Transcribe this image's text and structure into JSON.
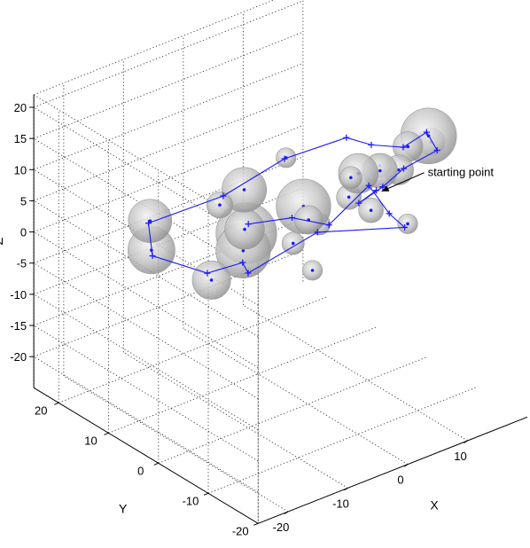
{
  "chart_data": {
    "type": "scatter",
    "subtype": "3d-path-with-spheres",
    "title": "",
    "xlabel": "X",
    "ylabel": "Y",
    "zlabel": "Z",
    "xlim": [
      -25,
      20
    ],
    "ylim": [
      -20,
      25
    ],
    "zlim": [
      -25,
      22
    ],
    "x_ticks": [
      "-20",
      "-10",
      "0",
      "10"
    ],
    "y_ticks": [
      "20",
      "10",
      "0",
      "-10",
      "-20"
    ],
    "z_ticks": [
      "20",
      "15",
      "10",
      "5",
      "0",
      "-5",
      "-10",
      "-15",
      "-20"
    ],
    "grid": true,
    "legend": "none",
    "series": [
      {
        "style": "line-with-plus-markers",
        "color": "#1a1aff",
        "points": [
          {
            "x": 0.2,
            "y": 12.2,
            "z": -2.1
          },
          {
            "x": 4.0,
            "y": 8.0,
            "z": -0.5
          },
          {
            "x": 6.0,
            "y": 3.0,
            "z": 0.0
          },
          {
            "x": 16.0,
            "y": 7.0,
            "z": 0.6
          },
          {
            "x": 11.5,
            "y": -2.5,
            "z": 2.4
          },
          {
            "x": 7.0,
            "y": -11.0,
            "z": 6.0
          },
          {
            "x": -4.5,
            "y": -7.3,
            "z": 7.8
          },
          {
            "x": -10.0,
            "y": 0.0,
            "z": -0.2
          },
          {
            "x": -6.5,
            "y": 5.3,
            "z": -2.4
          },
          {
            "x": -10.5,
            "y": 7.6,
            "z": -3.7
          },
          {
            "x": -14.5,
            "y": 13.8,
            "z": -2.4
          },
          {
            "x": -11.0,
            "y": 18.8,
            "z": -0.9
          },
          {
            "x": -1.5,
            "y": 15.2,
            "z": 1.6
          },
          {
            "x": 3.0,
            "y": 8.3,
            "z": 9.2
          },
          {
            "x": 8.5,
            "y": 2.5,
            "z": 13.3
          },
          {
            "x": 9.5,
            "y": -1.3,
            "z": 13.6
          },
          {
            "x": 14.0,
            "y": -2.3,
            "z": 12.0
          },
          {
            "x": 17.0,
            "y": -3.4,
            "z": 13.8
          },
          {
            "x": 14.0,
            "y": -9.1,
            "z": 14.8
          },
          {
            "x": 11.0,
            "y": -6.0,
            "z": 11.5
          },
          {
            "x": 10.0,
            "y": -3.0,
            "z": 7.5
          },
          {
            "x": 8.5,
            "y": 0.0,
            "z": 4.0
          },
          {
            "x": 12.5,
            "y": 1.3,
            "z": 3.9
          }
        ]
      }
    ],
    "spheres": [
      {
        "x": 0.5,
        "y": 13.3,
        "z": -3.6,
        "r": 3.2
      },
      {
        "x": 0.5,
        "y": 13.4,
        "z": 2.7,
        "r": 3.6
      },
      {
        "x": 13.0,
        "y": 5.5,
        "z": 4.4,
        "r": 3.2
      },
      {
        "x": 12.7,
        "y": 2.6,
        "z": 0.0,
        "r": 2.0
      },
      {
        "x": 4.1,
        "y": 7.9,
        "z": -4.6,
        "r": 1.8
      },
      {
        "x": 0.5,
        "y": -0.3,
        "z": -3.6,
        "r": 1.6
      },
      {
        "x": 2.6,
        "y": 3.0,
        "z": 2.1,
        "r": 2.3
      },
      {
        "x": -4.2,
        "y": -7.4,
        "z": 9.0,
        "r": 1.7
      },
      {
        "x": -10.3,
        "y": 0.0,
        "z": 6.3,
        "r": 4.9
      },
      {
        "x": -10.3,
        "y": 7.0,
        "z": -4.6,
        "r": 3.1
      },
      {
        "x": -14.5,
        "y": 14.0,
        "z": -1.6,
        "r": 3.8
      },
      {
        "x": -11.4,
        "y": 18.0,
        "z": 0.0,
        "r": 3.5
      },
      {
        "x": -2.0,
        "y": 15.3,
        "z": 0.3,
        "r": 2.1
      },
      {
        "x": -7.5,
        "y": 4.0,
        "z": 0.5,
        "r": 4.4
      },
      {
        "x": -4.5,
        "y": -4.5,
        "z": 10.6,
        "r": 4.4
      },
      {
        "x": 1.0,
        "y": -7.0,
        "z": 11.2,
        "r": 2.0
      },
      {
        "x": 7.5,
        "y": -11.0,
        "z": 6.4,
        "r": 1.6
      },
      {
        "x": 11.0,
        "y": -5.0,
        "z": 10.8,
        "r": 2.4
      },
      {
        "x": 15.0,
        "y": -6.7,
        "z": 14.6,
        "r": 2.2
      },
      {
        "x": 17.0,
        "y": -3.8,
        "z": 13.4,
        "r": 4.5
      },
      {
        "x": 15.2,
        "y": -1.8,
        "z": 11.4,
        "r": 2.4
      },
      {
        "x": 10.3,
        "y": -2.0,
        "z": 10.3,
        "r": 1.9
      },
      {
        "x": 11.8,
        "y": -0.3,
        "z": 8.1,
        "r": 2.8
      },
      {
        "x": 8.0,
        "y": 1.0,
        "z": 7.8,
        "r": 1.8
      },
      {
        "x": 3.0,
        "y": 8.0,
        "z": 9.5,
        "r": 1.6
      }
    ],
    "annotations": [
      {
        "text": "starting point",
        "arrow_to_point_index": 22
      }
    ]
  }
}
